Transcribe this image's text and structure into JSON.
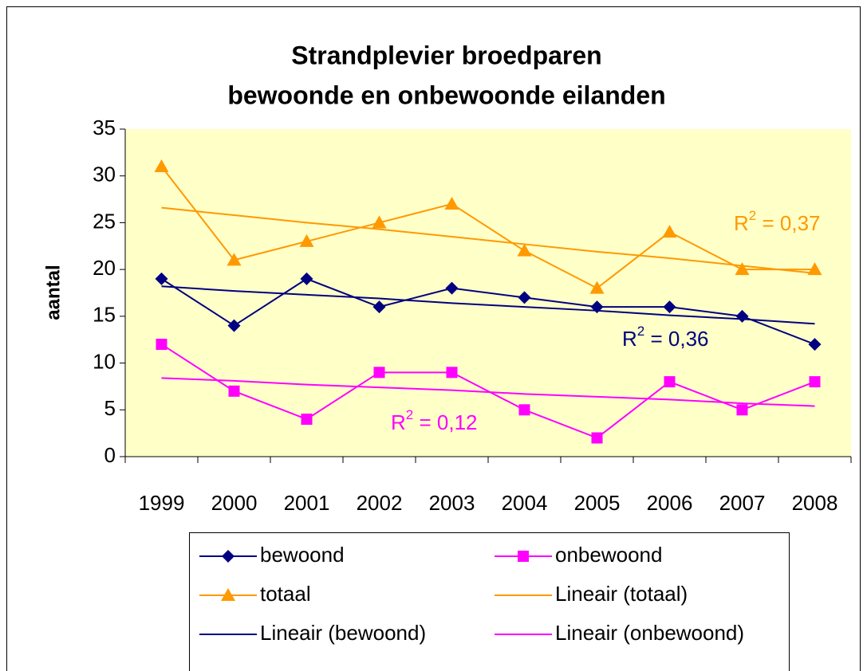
{
  "chart_data": {
    "type": "line",
    "title": "Strandplevier broedparen",
    "subtitle": "bewoonde en onbewoonde eilanden",
    "y_label": "aantal",
    "categories": [
      "1999",
      "2000",
      "2001",
      "2002",
      "2003",
      "2004",
      "2005",
      "2006",
      "2007",
      "2008"
    ],
    "series": [
      {
        "name": "bewoond",
        "color": "#000080",
        "marker": "diamond",
        "values": [
          19,
          14,
          19,
          16,
          18,
          17,
          16,
          16,
          15,
          12
        ]
      },
      {
        "name": "onbewoond",
        "color": "#ff00ff",
        "marker": "square",
        "values": [
          12,
          7,
          4,
          9,
          9,
          5,
          2,
          8,
          5,
          8
        ]
      },
      {
        "name": "totaal",
        "color": "#ff9900",
        "marker": "triangle",
        "values": [
          31,
          21,
          23,
          25,
          27,
          22,
          18,
          24,
          20,
          20
        ]
      },
      {
        "name": "Lineair (totaal)",
        "color": "#ff9900",
        "marker": "none",
        "values": [
          26.6,
          25.8,
          25.0,
          24.3,
          23.5,
          22.7,
          21.9,
          21.2,
          20.4,
          19.6
        ]
      },
      {
        "name": "Lineair (bewoond)",
        "color": "#000080",
        "marker": "none",
        "values": [
          18.2,
          17.7,
          17.3,
          16.9,
          16.4,
          16.0,
          15.6,
          15.1,
          14.7,
          14.2
        ]
      },
      {
        "name": "Lineair (onbewoond)",
        "color": "#ff00ff",
        "marker": "none",
        "values": [
          8.4,
          8.1,
          7.7,
          7.4,
          7.1,
          6.7,
          6.4,
          6.1,
          5.7,
          5.4
        ]
      }
    ],
    "annotations": [
      {
        "text": "R",
        "sup": "2",
        "rest": " = 0,37",
        "color": "#ff9900"
      },
      {
        "text": "R",
        "sup": "2",
        "rest": " = 0,36",
        "color": "#000080"
      },
      {
        "text": "R",
        "sup": "2",
        "rest": " = 0,12",
        "color": "#ff00ff"
      }
    ],
    "ylim": [
      0,
      35
    ],
    "yticks": [
      0,
      5,
      10,
      15,
      20,
      25,
      30,
      35
    ],
    "grid": false,
    "legend": "bottom",
    "plot_background": "#ffffc8"
  }
}
